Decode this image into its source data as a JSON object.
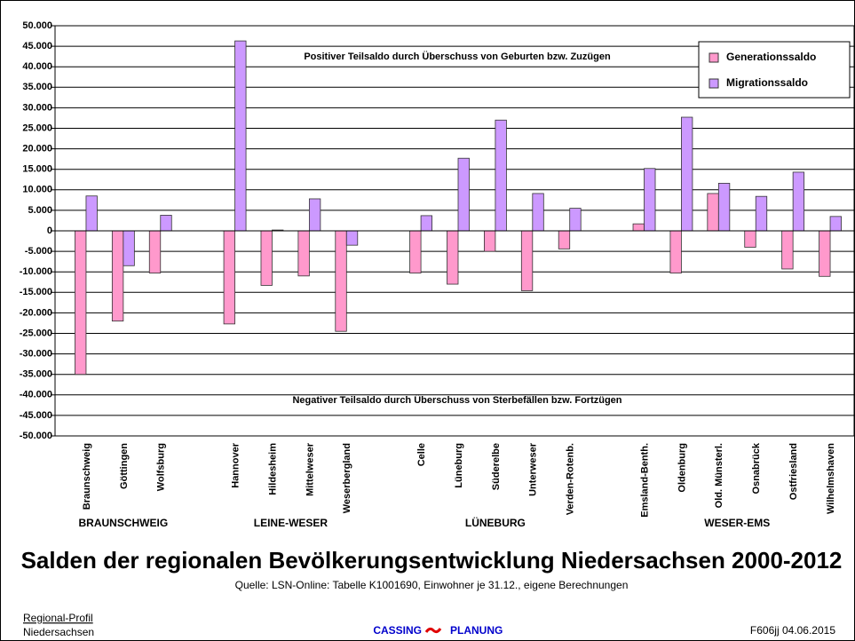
{
  "chart_data": {
    "type": "bar",
    "title": "Salden der regionalen Bevölkerungsentwicklung Niedersachsen 2000-2012",
    "subtitle": "Quelle: LSN-Online: Tabelle K1001690, Einwohner je 31.12., eigene Berechnungen",
    "annotations": [
      "Positiver Teilsaldo durch Überschuss von Geburten bzw. Zuzügen",
      "Negativer Teilsaldo durch Überschuss von Sterbefällen bzw. Fortzügen"
    ],
    "categories": [
      "Braunschweig",
      "Göttingen",
      "Wolfsburg",
      null,
      "Hannover",
      "Hildesheim",
      "Mittelweser",
      "Weserbergland",
      null,
      "Celle",
      "Lüneburg",
      "Süderelbe",
      "Unterweser",
      "Verden-Rotenb.",
      null,
      "Emsland-Benth.",
      "Oldenburg",
      "Old. Münsterl.",
      "Osnabrück",
      "Ostfriesland",
      "Wilhelmshaven"
    ],
    "regions": [
      "BRAUNSCHWEIG",
      "LEINE-WESER",
      "LÜNEBURG",
      "WESER-EMS"
    ],
    "series": [
      {
        "name": "Generationssaldo",
        "color": "#ff99cc",
        "values": [
          -35000,
          -22000,
          -10300,
          null,
          -22700,
          -13300,
          -11000,
          -24500,
          null,
          -10300,
          -13000,
          -5000,
          -14600,
          -4400,
          null,
          1700,
          -10300,
          9100,
          -4000,
          -9300,
          -11100
        ]
      },
      {
        "name": "Migrationssaldo",
        "color": "#cc99ff",
        "values": [
          8500,
          -8500,
          3800,
          null,
          46300,
          200,
          7800,
          -3500,
          null,
          3700,
          17700,
          27000,
          9100,
          5500,
          null,
          15200,
          27700,
          11600,
          8400,
          14300,
          3500
        ]
      }
    ],
    "ylim": [
      -50000,
      50000
    ],
    "yticks": [
      {
        "value": -50000,
        "label": "-50.000"
      },
      {
        "value": -45000,
        "label": "-45.000"
      },
      {
        "value": -40000,
        "label": "-40.000"
      },
      {
        "value": -35000,
        "label": "-35.000"
      },
      {
        "value": -30000,
        "label": "-30.000"
      },
      {
        "value": -25000,
        "label": "-25.000"
      },
      {
        "value": -20000,
        "label": "-20.000"
      },
      {
        "value": -15000,
        "label": "-15.000"
      },
      {
        "value": -10000,
        "label": "-10.000"
      },
      {
        "value": -5000,
        "label": "-5.000"
      },
      0,
      {
        "value": 5000,
        "label": "5.000"
      },
      {
        "value": 10000,
        "label": "10.000"
      },
      {
        "value": 15000,
        "label": "15.000"
      },
      {
        "value": 20000,
        "label": "20.000"
      },
      {
        "value": 25000,
        "label": "25.000"
      },
      {
        "value": 30000,
        "label": "30.000"
      },
      {
        "value": 35000,
        "label": "35.000"
      },
      {
        "value": 40000,
        "label": "40.000"
      },
      {
        "value": 45000,
        "label": "45.000"
      },
      {
        "value": 50000,
        "label": "50.000"
      }
    ],
    "grid": true,
    "legend": "upper right"
  },
  "footer": {
    "left": [
      "Regional-Profil",
      "Niedersachsen"
    ],
    "brand": [
      "CASSING",
      "PLANUNG"
    ],
    "right": "F606jj   04.06.2015"
  }
}
